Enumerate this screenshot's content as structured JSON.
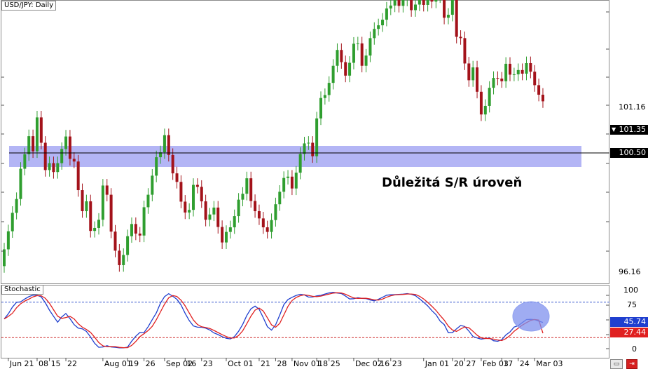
{
  "header": {
    "symbol_label": "USD/JPY: Daily"
  },
  "annotation": {
    "sr_text": "Důležitá S/R úroveň"
  },
  "price_axis": {
    "labels": [
      {
        "value": 101.16,
        "text": "101.16"
      },
      {
        "value": 96.16,
        "text": "96.16"
      }
    ],
    "current_price": {
      "value": 101.35,
      "text": "101.35"
    },
    "sr_price": {
      "value": 100.5,
      "text": "100.50"
    }
  },
  "stochastic": {
    "label": "Stochastic",
    "levels": [
      {
        "value": 100,
        "text": "100"
      },
      {
        "value": 75,
        "text": "75"
      },
      {
        "value": 0,
        "text": "0"
      }
    ],
    "k_value": {
      "value": 45.74,
      "text": "45.74"
    },
    "d_value": {
      "value": 27.44,
      "text": "27.44"
    }
  },
  "time_axis": [
    {
      "index": 1,
      "text": "Jun 21"
    },
    {
      "index": 8,
      "text": "08"
    },
    {
      "index": 11,
      "text": "15"
    },
    {
      "index": 15,
      "text": "22"
    },
    {
      "index": 24,
      "text": "Aug 01"
    },
    {
      "index": 30,
      "text": "19"
    },
    {
      "index": 34,
      "text": "26"
    },
    {
      "index": 39,
      "text": "Sep 02"
    },
    {
      "index": 44,
      "text": "16"
    },
    {
      "index": 48,
      "text": "23"
    },
    {
      "index": 54,
      "text": "Oct 01"
    },
    {
      "index": 62,
      "text": "21"
    },
    {
      "index": 66,
      "text": "28"
    },
    {
      "index": 70,
      "text": "Nov 01"
    },
    {
      "index": 76,
      "text": "18"
    },
    {
      "index": 79,
      "text": "25"
    },
    {
      "index": 85,
      "text": "Dec 02"
    },
    {
      "index": 91,
      "text": "16"
    },
    {
      "index": 94,
      "text": "23"
    },
    {
      "index": 102,
      "text": "Jan 01"
    },
    {
      "index": 109,
      "text": "20"
    },
    {
      "index": 112,
      "text": "27"
    },
    {
      "index": 116,
      "text": "Feb 03"
    },
    {
      "index": 121,
      "text": "17"
    },
    {
      "index": 125,
      "text": "24"
    },
    {
      "index": 129,
      "text": "Mar 03"
    }
  ],
  "colors": {
    "bull": "#2f9e2f",
    "bear": "#a3121a",
    "sr_zone": "#b3b5f5",
    "k_line": "#1f3fcf",
    "d_line": "#e02020",
    "overbought": "#3f5fcf",
    "oversold": "#d03030"
  },
  "chart_data": [
    {
      "type": "candlestick",
      "title": "USD/JPY: Daily",
      "y_visible_range": [
        95.9,
        104.5
      ],
      "current_price": 101.35,
      "support_resistance": {
        "price": 100.5,
        "zone": [
          100.04,
          100.84
        ],
        "label": "Důležitá S/R úroveň"
      },
      "x_categories_count": 132,
      "close": [
        96.85,
        97.4,
        97.96,
        98.38,
        99.3,
        99.74,
        100.29,
        99.83,
        100.86,
        100.09,
        99.26,
        99.47,
        99.2,
        99.47,
        99.9,
        100.28,
        99.6,
        99.52,
        98.65,
        98.01,
        98.31,
        97.41,
        97.5,
        97.75,
        98.79,
        98.51,
        97.39,
        96.81,
        96.37,
        96.68,
        97.25,
        97.62,
        97.33,
        97.27,
        98.13,
        98.51,
        99.09,
        99.65,
        99.8,
        100.32,
        99.72,
        99.16,
        98.9,
        98.3,
        97.97,
        98.05,
        98.81,
        98.75,
        98.31,
        97.75,
        97.91,
        98.12,
        97.53,
        97.06,
        97.38,
        97.52,
        97.86,
        98.36,
        98.54,
        99.01,
        98.32,
        98.01,
        97.79,
        97.52,
        97.38,
        97.74,
        98.22,
        98.6,
        99.02,
        99.06,
        98.7,
        99.18,
        99.75,
        100.07,
        100.09,
        99.68,
        100.83,
        101.45,
        101.54,
        101.91,
        102.43,
        102.91,
        102.54,
        102.13,
        102.52,
        103.1,
        103.11,
        102.43,
        102.74,
        103.27,
        103.55,
        103.66,
        103.83,
        104.17,
        104.26,
        104.51,
        104.25,
        104.44,
        104.56,
        104.12,
        104.29,
        104.56,
        104.28,
        104.46,
        104.38,
        104.54,
        104.68,
        103.89,
        103.98,
        104.45,
        103.31,
        103.27,
        102.5,
        101.99,
        102.38,
        101.64,
        100.95,
        101.21,
        101.76,
        102.06,
        102.04,
        101.96,
        102.49,
        102.16,
        102.17,
        102.3,
        102.19,
        102.51,
        102.25,
        101.84,
        101.55,
        101.35
      ],
      "open": [
        96.34,
        96.85,
        97.4,
        97.96,
        98.38,
        99.3,
        99.74,
        100.29,
        99.83,
        100.86,
        100.09,
        99.26,
        99.47,
        99.2,
        99.47,
        99.9,
        100.28,
        99.6,
        99.52,
        98.65,
        98.01,
        98.31,
        97.41,
        97.5,
        97.75,
        98.79,
        98.51,
        97.39,
        96.81,
        96.37,
        96.68,
        97.25,
        97.62,
        97.33,
        97.27,
        98.13,
        98.51,
        99.09,
        99.65,
        99.8,
        100.32,
        99.72,
        99.16,
        98.9,
        98.3,
        97.97,
        98.05,
        98.81,
        98.75,
        98.31,
        97.75,
        97.91,
        98.12,
        97.53,
        97.06,
        97.38,
        97.52,
        97.86,
        98.36,
        98.54,
        99.01,
        98.32,
        98.01,
        97.79,
        97.52,
        97.38,
        97.74,
        98.22,
        98.6,
        99.02,
        99.06,
        98.7,
        99.18,
        99.75,
        100.07,
        100.09,
        99.68,
        100.83,
        101.45,
        101.54,
        101.91,
        102.43,
        102.91,
        102.54,
        102.13,
        102.52,
        103.1,
        103.11,
        102.43,
        102.74,
        103.27,
        103.55,
        103.66,
        103.83,
        104.17,
        104.26,
        104.51,
        104.25,
        104.44,
        104.56,
        104.12,
        104.29,
        104.56,
        104.28,
        104.46,
        104.38,
        104.54,
        104.68,
        103.89,
        103.98,
        104.45,
        103.31,
        103.27,
        102.5,
        101.99,
        102.38,
        101.64,
        100.95,
        101.21,
        101.76,
        102.06,
        102.04,
        101.96,
        102.49,
        102.16,
        102.17,
        102.3,
        102.19,
        102.51,
        102.25,
        101.84,
        101.55
      ],
      "high": [
        97.05,
        97.6,
        98.16,
        98.58,
        99.5,
        99.94,
        100.49,
        100.49,
        101.06,
        101.06,
        100.29,
        99.67,
        99.67,
        99.67,
        100.1,
        100.48,
        100.48,
        99.8,
        99.72,
        98.85,
        98.51,
        98.51,
        97.7,
        97.95,
        98.99,
        98.99,
        98.71,
        97.59,
        97.01,
        96.88,
        97.45,
        97.82,
        97.82,
        97.53,
        98.33,
        98.71,
        99.29,
        99.85,
        100.0,
        100.52,
        100.52,
        99.92,
        99.36,
        99.1,
        98.5,
        98.25,
        99.01,
        99.01,
        98.95,
        98.51,
        98.11,
        98.32,
        98.32,
        97.73,
        97.58,
        97.72,
        98.06,
        98.56,
        98.74,
        99.21,
        99.21,
        98.52,
        98.21,
        97.99,
        97.72,
        97.94,
        98.42,
        98.8,
        99.22,
        99.26,
        99.26,
        99.38,
        99.95,
        100.27,
        100.29,
        100.29,
        101.03,
        101.65,
        101.74,
        102.11,
        102.63,
        103.11,
        103.11,
        102.74,
        102.72,
        103.3,
        103.31,
        103.31,
        102.94,
        103.47,
        103.75,
        103.86,
        104.03,
        104.37,
        104.46,
        104.71,
        104.71,
        104.64,
        104.76,
        104.76,
        104.49,
        104.76,
        104.76,
        104.66,
        104.66,
        104.74,
        104.88,
        104.88,
        104.18,
        104.65,
        104.65,
        103.51,
        103.47,
        102.7,
        102.58,
        102.58,
        101.84,
        101.41,
        101.96,
        102.26,
        102.26,
        102.24,
        102.69,
        102.69,
        102.37,
        102.5,
        102.5,
        102.71,
        102.71,
        102.45,
        102.04,
        101.75
      ],
      "low": [
        96.14,
        96.65,
        97.2,
        97.76,
        98.18,
        99.1,
        99.54,
        99.63,
        99.63,
        99.89,
        99.06,
        99.06,
        99.0,
        99.0,
        99.27,
        99.7,
        99.4,
        99.32,
        98.45,
        97.81,
        97.81,
        97.21,
        97.21,
        97.3,
        97.55,
        98.31,
        97.19,
        96.61,
        96.17,
        96.17,
        96.48,
        97.05,
        97.13,
        97.07,
        97.07,
        97.93,
        98.31,
        98.89,
        99.45,
        99.6,
        99.52,
        98.96,
        98.7,
        98.1,
        97.77,
        97.77,
        97.85,
        98.55,
        98.11,
        97.55,
        97.55,
        97.71,
        97.33,
        96.86,
        96.86,
        97.18,
        97.32,
        97.66,
        98.16,
        98.34,
        98.12,
        97.81,
        97.59,
        97.32,
        97.18,
        97.18,
        97.54,
        98.02,
        98.4,
        98.82,
        98.5,
        98.5,
        98.98,
        99.55,
        99.87,
        99.48,
        99.48,
        100.63,
        101.25,
        101.34,
        101.71,
        102.23,
        102.34,
        101.93,
        101.93,
        102.32,
        102.9,
        102.23,
        102.23,
        102.54,
        103.07,
        103.35,
        103.46,
        103.63,
        103.97,
        104.06,
        104.05,
        104.05,
        104.24,
        103.92,
        103.92,
        104.09,
        104.08,
        104.08,
        104.18,
        104.18,
        104.34,
        103.69,
        103.69,
        103.78,
        103.11,
        103.07,
        102.3,
        101.79,
        101.79,
        101.44,
        100.75,
        100.75,
        101.01,
        101.56,
        101.84,
        101.76,
        101.76,
        101.96,
        101.96,
        101.97,
        101.99,
        101.99,
        102.05,
        101.64,
        101.35,
        101.15
      ]
    },
    {
      "type": "line",
      "title": "Stochastic",
      "ylim": [
        0,
        100
      ],
      "levels": [
        20,
        80
      ],
      "series": [
        {
          "name": "%K",
          "color": "#1f3fcf",
          "values": [
            51.5,
            60.4,
            71.7,
            79.8,
            80.6,
            85.5,
            89.4,
            92.2,
            91.8,
            89.0,
            79.2,
            66.5,
            56.2,
            46.1,
            55.1,
            60.8,
            52.2,
            42.0,
            35.9,
            34.9,
            30.4,
            21.0,
            10.4,
            3.5,
            4.1,
            6.2,
            4.0,
            3.5,
            2.5,
            2.5,
            3.7,
            13.9,
            22.3,
            28.7,
            28.5,
            38.4,
            50.4,
            62.0,
            78.6,
            89.5,
            94.5,
            90.0,
            85.0,
            75.4,
            61.1,
            48.9,
            39.8,
            37.6,
            37.5,
            36.0,
            32.8,
            27.9,
            25.1,
            21.6,
            18.7,
            17.7,
            21.7,
            30.7,
            42.5,
            57.5,
            68.8,
            73.5,
            68.1,
            53.7,
            38.4,
            32.6,
            41.5,
            58.2,
            75.9,
            84.5,
            88.3,
            91.6,
            93.4,
            92.4,
            88.7,
            88.8,
            90.7,
            91.7,
            93.9,
            95.8,
            96.8,
            95.6,
            94.6,
            90.4,
            85.5,
            86.0,
            87.6,
            86.5,
            86.2,
            83.8,
            82.4,
            85.0,
            88.3,
            91.9,
            92.6,
            92.8,
            93.2,
            93.7,
            94.7,
            93.4,
            91.1,
            85.7,
            80.0,
            73.7,
            65.7,
            58.9,
            48.1,
            42.0,
            28.2,
            28.3,
            34.9,
            40.6,
            38.8,
            31.1,
            21.8,
            19.4,
            17.4,
            18.4,
            19.2,
            14.7,
            13.7,
            16.4,
            24.4,
            29.7,
            37.9,
            40.2,
            45.5,
            50.6,
            51.0,
            50.4,
            47.9,
            45.74
          ]
        },
        {
          "name": "%D",
          "color": "#e02020",
          "values": [
            51.5,
            55.9,
            61.2,
            70.6,
            77.4,
            82.0,
            85.2,
            89.0,
            91.2,
            91.0,
            86.7,
            78.2,
            67.3,
            56.3,
            52.5,
            54.0,
            56.0,
            51.7,
            43.4,
            37.6,
            33.7,
            28.8,
            20.6,
            11.6,
            6.0,
            4.6,
            4.8,
            4.6,
            3.3,
            2.8,
            2.9,
            6.7,
            13.3,
            21.6,
            26.5,
            31.9,
            39.1,
            50.3,
            63.7,
            76.7,
            87.5,
            91.3,
            89.8,
            83.5,
            73.8,
            61.8,
            49.9,
            42.1,
            38.3,
            37.0,
            35.4,
            32.2,
            28.6,
            24.9,
            21.8,
            19.3,
            19.4,
            23.4,
            31.6,
            43.6,
            56.3,
            66.6,
            70.1,
            65.1,
            53.4,
            41.6,
            37.5,
            44.1,
            58.5,
            72.9,
            82.9,
            88.1,
            91.1,
            92.5,
            91.5,
            90.0,
            89.4,
            90.4,
            92.1,
            93.8,
            95.5,
            96.1,
            95.7,
            93.5,
            90.2,
            87.3,
            86.4,
            86.7,
            86.8,
            85.5,
            84.1,
            83.7,
            85.2,
            88.4,
            90.9,
            92.4,
            92.9,
            93.2,
            93.9,
            93.9,
            93.1,
            90.1,
            85.6,
            79.8,
            73.1,
            66.1,
            57.6,
            49.7,
            39.4,
            32.8,
            30.5,
            34.6,
            38.1,
            36.8,
            30.6,
            24.1,
            19.5,
            18.4,
            18.3,
            17.4,
            15.9,
            14.9,
            18.2,
            23.5,
            30.7,
            35.9,
            41.2,
            45.4,
            49.0,
            50.7,
            49.8,
            27.44
          ]
        }
      ]
    }
  ]
}
